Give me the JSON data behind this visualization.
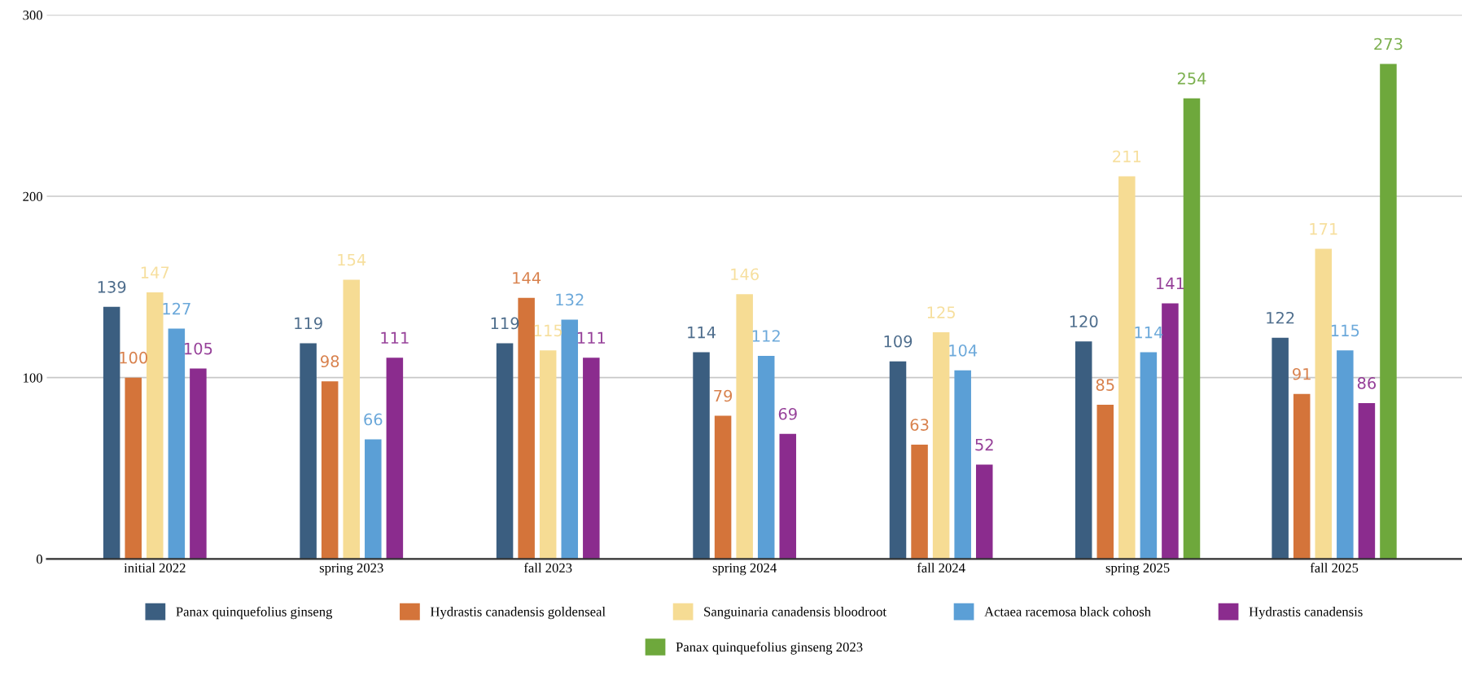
{
  "chart_data": {
    "type": "bar",
    "categories": [
      "initial 2022",
      "spring 2023",
      "fall 2023",
      "spring 2024",
      "fall 2024",
      "spring 2025",
      "fall 2025"
    ],
    "series": [
      {
        "name": "Panax quinquefolius ginseng",
        "color": "#3b5e80",
        "values": [
          139,
          119,
          119,
          114,
          109,
          120,
          122
        ]
      },
      {
        "name": "Hydrastis canadensis goldenseal",
        "color": "#d4743a",
        "values": [
          100,
          98,
          144,
          79,
          63,
          85,
          91
        ]
      },
      {
        "name": "Sanguinaria canadensis bloodroot",
        "color": "#f6dc94",
        "values": [
          147,
          154,
          115,
          146,
          125,
          211,
          171
        ]
      },
      {
        "name": "Actaea racemosa black cohosh",
        "color": "#5b9fd6",
        "values": [
          127,
          66,
          132,
          112,
          104,
          114,
          115
        ]
      },
      {
        "name": "Hydrastis canadensis",
        "color": "#8b2c8e",
        "values": [
          105,
          111,
          111,
          69,
          52,
          141,
          86
        ]
      },
      {
        "name": "Panax quinquefolius ginseng 2023",
        "color": "#6ea83c",
        "values": [
          null,
          null,
          null,
          null,
          null,
          254,
          273
        ]
      }
    ],
    "ylim": [
      0,
      300
    ],
    "yticks": [
      0,
      100,
      200,
      300
    ],
    "grid": "y",
    "legend": "bottom",
    "data_labels": true
  }
}
